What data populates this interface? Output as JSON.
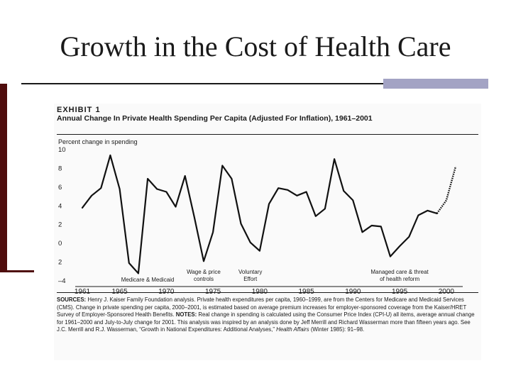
{
  "slide": {
    "title": "Growth in the Cost of Health Care"
  },
  "exhibit": {
    "label": "EXHIBIT 1",
    "title": "Annual Change In Private Health Spending Per Capita (Adjusted For Inflation), 1961–2001",
    "sources_label": "SOURCES:",
    "sources_text": "Henry J. Kaiser Family Foundation analysis. Private health expenditures per capita, 1960–1999, are from the Centers for Medicare and Medicaid Services (CMS). Change in private spending per capita, 2000–2001, is estimated based on average premium increases for employer-sponsored coverage from the Kaiser/HRET Survey of Employer-Sponsored Health Benefits.",
    "notes_label": "NOTES:",
    "notes_text_1": "Real change in spending is calculated using the Consumer Price Index (CPI-U) all items, average annual change for 1961–2000 and July-to-July change for 2001. This analysis was inspired by an analysis done by Jeff Merrill and Richard Wasserman more than fifteen years ago. See J.C. Merrill and R.J. Wasserman, “Growth in National Expenditures: Additional Analyses,”",
    "notes_journal": "Health Affairs",
    "notes_text_2": "(Winter 1985): 91–98."
  },
  "chart_data": {
    "type": "line",
    "ylabel": "Percent change in spending",
    "ylim": [
      -4,
      10
    ],
    "yticks": [
      10,
      8,
      6,
      4,
      2,
      0,
      -2,
      -4
    ],
    "ytick_labels": [
      "10",
      "8",
      "6",
      "4",
      "2",
      "0",
      "2",
      "–4"
    ],
    "xlim": [
      1961,
      2001
    ],
    "xticks": [
      1961,
      1965,
      1970,
      1975,
      1980,
      1985,
      1990,
      1995,
      2000
    ],
    "xtick_labels": [
      "1961",
      "1965",
      "1970",
      "1975",
      "1980",
      "1985",
      "1990",
      "1995",
      "2000"
    ],
    "series": [
      {
        "style": "solid",
        "x": [
          1961,
          1962,
          1963,
          1964,
          1965,
          1966,
          1967,
          1968,
          1969,
          1970,
          1971,
          1972,
          1973,
          1974,
          1975,
          1976,
          1977,
          1978,
          1979,
          1980,
          1981,
          1982,
          1983,
          1984,
          1985,
          1986,
          1987,
          1988,
          1989,
          1990,
          1991,
          1992,
          1993,
          1994,
          1995,
          1996,
          1997,
          1998,
          1999
        ],
        "y": [
          3.8,
          5.1,
          5.9,
          9.4,
          5.8,
          -2.1,
          -3.2,
          6.9,
          5.8,
          5.5,
          3.9,
          7.2,
          2.8,
          -1.9,
          1.2,
          8.3,
          6.9,
          2.1,
          0.1,
          -0.8,
          4.2,
          5.9,
          5.7,
          5.1,
          5.5,
          2.9,
          3.7,
          9.0,
          5.6,
          4.6,
          1.2,
          1.9,
          1.8,
          -1.4,
          -0.3,
          0.7,
          3.0,
          3.5,
          3.2
        ]
      },
      {
        "style": "dotted",
        "x": [
          1999,
          2000,
          2001
        ],
        "y": [
          3.2,
          4.6,
          8.2
        ]
      }
    ],
    "annotations": [
      {
        "text": "Medicare & Medicaid",
        "x": 1968
      },
      {
        "text": "Wage & price\ncontrols",
        "x": 1974
      },
      {
        "text": "Voluntary\nEffort",
        "x": 1979
      },
      {
        "text": "Managed care & threat\nof health reform",
        "x": 1995
      }
    ],
    "grid": false,
    "legend": "none"
  }
}
